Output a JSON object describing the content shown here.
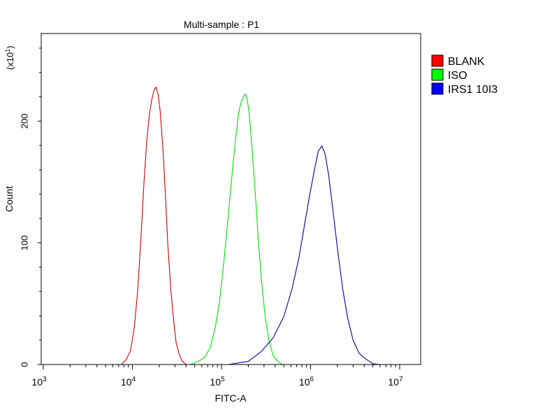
{
  "chart_data": {
    "type": "histogram",
    "title": "Multi-sample : P1",
    "xlabel": "FITC-A",
    "ylabel": "Count",
    "y_multiplier_label": "(x10",
    "y_multiplier_exp": "1",
    "y_multiplier_close": ")",
    "x_scale": "log",
    "xlim": [
      1000,
      10000000
    ],
    "ylim": [
      0,
      272
    ],
    "x_ticks": [
      {
        "value": 1000,
        "base": "10",
        "exp": "3"
      },
      {
        "value": 10000,
        "base": "10",
        "exp": "4"
      },
      {
        "value": 100000,
        "base": "10",
        "exp": "5"
      },
      {
        "value": 1000000,
        "base": "10",
        "exp": "6"
      },
      {
        "value": 10000000,
        "base": "10",
        "exp": "7"
      }
    ],
    "y_ticks": [
      0,
      100,
      200
    ],
    "legend_position": "right",
    "series": [
      {
        "name": "BLANK",
        "color": "#cc0000",
        "swatch_color": "#ff0000",
        "x": [
          7500,
          8500,
          9500,
          10500,
          11500,
          12500,
          13500,
          14500,
          15500,
          16500,
          17500,
          18500,
          19500,
          20500,
          22000,
          23500,
          25000,
          27000,
          29000,
          31000,
          33500,
          36000,
          40000
        ],
        "y": [
          0,
          4,
          12,
          30,
          62,
          105,
          150,
          185,
          205,
          218,
          225,
          228,
          222,
          208,
          178,
          138,
          98,
          62,
          36,
          18,
          8,
          3,
          0
        ]
      },
      {
        "name": "ISO",
        "color": "#00dd00",
        "swatch_color": "#00ff00",
        "x": [
          45000,
          55000,
          65000,
          75000,
          85000,
          95000,
          105000,
          115000,
          125000,
          135000,
          145000,
          155000,
          165000,
          175000,
          185000,
          195000,
          205000,
          220000,
          240000,
          260000,
          285000,
          310000,
          340000,
          380000,
          430000,
          480000
        ],
        "y": [
          0,
          2,
          6,
          15,
          30,
          52,
          80,
          110,
          140,
          165,
          188,
          205,
          215,
          220,
          222,
          218,
          205,
          178,
          140,
          100,
          65,
          38,
          20,
          8,
          2,
          0
        ]
      },
      {
        "name": "IRS1 10I3",
        "color": "#000099",
        "swatch_color": "#0000ff",
        "x": [
          120000,
          200000,
          280000,
          380000,
          500000,
          620000,
          740000,
          860000,
          980000,
          1100000,
          1220000,
          1340000,
          1460000,
          1600000,
          1800000,
          2000000,
          2300000,
          2600000,
          3000000,
          3500000,
          4200000,
          5000000,
          6000000
        ],
        "y": [
          0,
          3,
          10,
          22,
          40,
          62,
          88,
          115,
          140,
          160,
          175,
          180,
          172,
          155,
          125,
          95,
          62,
          38,
          20,
          10,
          4,
          1,
          0
        ]
      }
    ]
  }
}
